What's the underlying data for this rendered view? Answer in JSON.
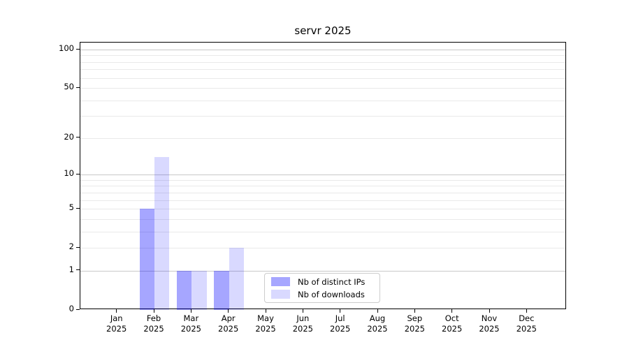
{
  "title": "servr 2025",
  "chart_data": {
    "type": "bar",
    "title": "servr 2025",
    "months": [
      "Jan",
      "Feb",
      "Mar",
      "Apr",
      "May",
      "Jun",
      "Jul",
      "Aug",
      "Sep",
      "Oct",
      "Nov",
      "Dec"
    ],
    "year": "2025",
    "categories": [
      "Jan 2025",
      "Feb 2025",
      "Mar 2025",
      "Apr 2025",
      "May 2025",
      "Jun 2025",
      "Jul 2025",
      "Aug 2025",
      "Sep 2025",
      "Oct 2025",
      "Nov 2025",
      "Dec 2025"
    ],
    "series": [
      {
        "name": "Nb of distinct IPs",
        "color": "rgba(0,0,255,0.35)",
        "values": [
          0,
          5,
          1,
          1,
          0,
          0,
          0,
          0,
          0,
          0,
          0,
          0
        ]
      },
      {
        "name": "Nb of downloads",
        "color": "rgba(0,0,255,0.15)",
        "values": [
          0,
          14,
          1,
          2,
          0,
          0,
          0,
          0,
          0,
          0,
          0,
          0
        ]
      }
    ],
    "yscale": "log1p",
    "ylim": [
      0,
      114
    ],
    "yticks": [
      0,
      1,
      2,
      5,
      10,
      20,
      50,
      100
    ],
    "major_gridlines": [
      1,
      10,
      100
    ],
    "minor_gridlines": [
      2,
      3,
      4,
      5,
      6,
      7,
      8,
      9,
      20,
      30,
      40,
      50,
      60,
      70,
      80,
      90
    ],
    "grid": true,
    "legend": {
      "position": "lower center",
      "labels": [
        "Nb of distinct IPs",
        "Nb of downloads"
      ]
    }
  },
  "colors": {
    "bar_distinct_ips": "rgba(0,0,255,0.35)",
    "bar_downloads": "rgba(0,0,255,0.15)",
    "grid_major": "#c8c8c8",
    "grid_minor": "#e9e9e9",
    "axis": "#000000",
    "background": "#ffffff"
  }
}
